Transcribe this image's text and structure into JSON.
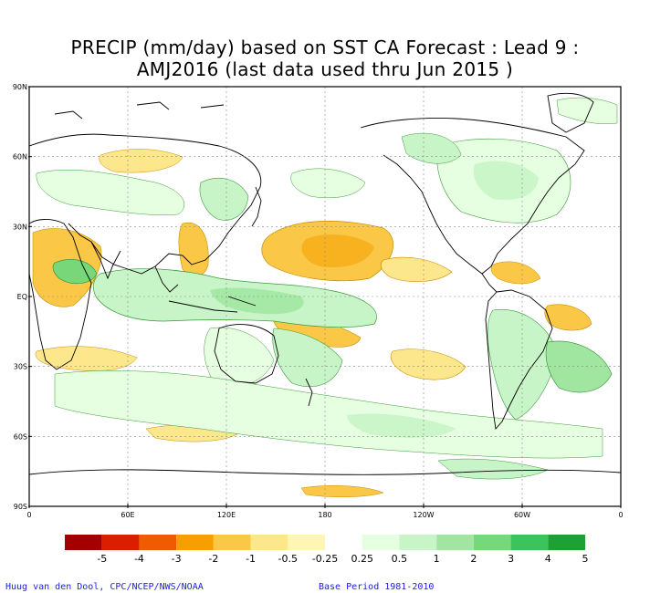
{
  "title": {
    "line1": "PRECIP (mm/day) based on SST CA Forecast : Lead 9 :",
    "line2": "AMJ2016 (last data used thru Jun 2015 )"
  },
  "axes": {
    "lat_labels": [
      "90N",
      "60N",
      "30N",
      "EQ",
      "30S",
      "60S",
      "90S"
    ],
    "lon_labels": [
      "0",
      "60E",
      "120E",
      "180",
      "120W",
      "60W",
      "0"
    ]
  },
  "legend": {
    "labels": [
      "-5",
      "-4",
      "-3",
      "-2",
      "-1",
      "-0.5",
      "-0.25",
      "0.25",
      "0.5",
      "1",
      "2",
      "3",
      "4",
      "5"
    ],
    "colors": [
      "#a50000",
      "#dc1e00",
      "#f05a00",
      "#f5a000",
      "#fac846",
      "#fde78c",
      "#fff6b4",
      "#ffffff",
      "#e6ffe1",
      "#c8f5c8",
      "#a0e6a0",
      "#78d778",
      "#3cc35a",
      "#1ea032"
    ]
  },
  "footer": {
    "credit": "Huug van den Dool, CPC/NCEP/NWS/NOAA",
    "base_period": "Base Period 1981-2010"
  },
  "field_colors": {
    "wet_light": "#e6ffe1",
    "wet_mid": "#c8f5c8",
    "wet_strong": "#a0e6a0",
    "wet_deep": "#78d778",
    "dry_light": "#fde78c",
    "dry_mid": "#fac846",
    "dry_strong": "#f5a000"
  }
}
